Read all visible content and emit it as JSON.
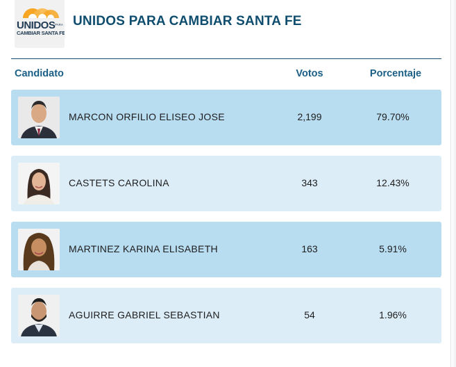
{
  "party": {
    "logo_text_main": "UNIDOS",
    "logo_text_small": "PARA",
    "logo_text_sub": "CAMBIAR SANTA FE",
    "title": "UNIDOS PARA CAMBIAR SANTA FE"
  },
  "columns": {
    "candidato": "Candidato",
    "votos": "Votos",
    "porcentaje": "Porcentaje"
  },
  "candidates": [
    {
      "name": "MARCON ORFILIO ELISEO JOSE",
      "votes": "2,199",
      "percent": "79.70%"
    },
    {
      "name": "CASTETS CAROLINA",
      "votes": "343",
      "percent": "12.43%"
    },
    {
      "name": "MARTINEZ KARINA ELISABETH",
      "votes": "163",
      "percent": "5.91%"
    },
    {
      "name": "AGUIRRE GABRIEL SEBASTIAN",
      "votes": "54",
      "percent": "1.96%"
    }
  ],
  "colors": {
    "accent": "#0f4d6e",
    "header_text": "#1b5f86",
    "row_highlight": "#b8dcf0",
    "row_light": "#dcedf8",
    "logo_sun": "#f6a623"
  }
}
